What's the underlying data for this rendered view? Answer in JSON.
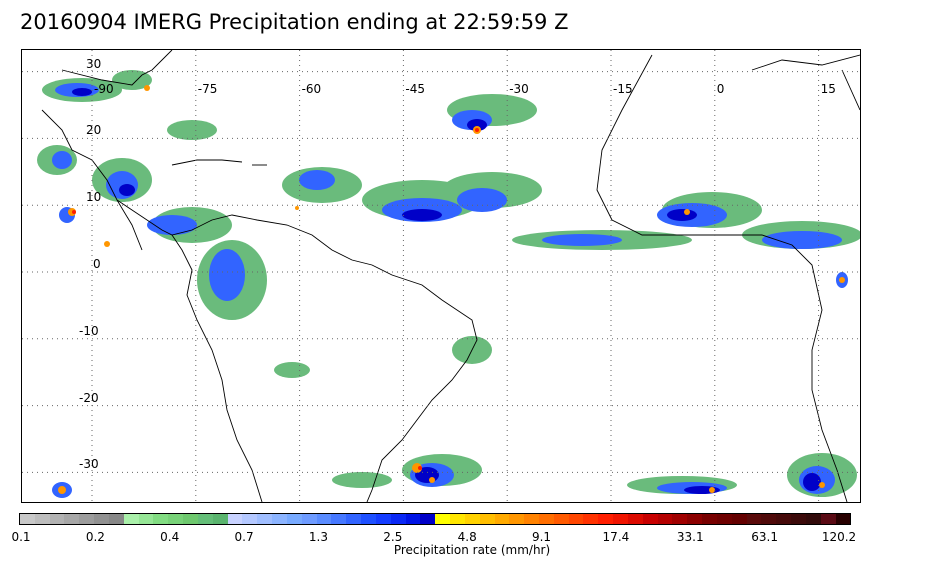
{
  "title": "20160904 IMERG Precipitation ending at 22:59:59 Z",
  "map": {
    "lon_labels": [
      {
        "text": "-90",
        "lon": -90
      },
      {
        "text": "-75",
        "lon": -75
      },
      {
        "text": "-60",
        "lon": -60
      },
      {
        "text": "-45",
        "lon": -45
      },
      {
        "text": "-30",
        "lon": -30
      },
      {
        "text": "-15",
        "lon": -15
      },
      {
        "text": "0",
        "lon": 0
      },
      {
        "text": "15",
        "lon": 15
      }
    ],
    "lat_labels": [
      {
        "text": "30",
        "lat": 30
      },
      {
        "text": "20",
        "lat": 20
      },
      {
        "text": "10",
        "lat": 10
      },
      {
        "text": "0",
        "lat": 0
      },
      {
        "text": "-10",
        "lat": -10
      },
      {
        "text": "-20",
        "lat": -20
      },
      {
        "text": "-30",
        "lat": -30
      }
    ],
    "grid_style": "dotted"
  },
  "colorbar": {
    "title": "Precipitation rate (mm/hr)",
    "tick_labels": [
      "0.1",
      "0.2",
      "0.4",
      "0.7",
      "1.3",
      "2.5",
      "4.8",
      "9.1",
      "17.4",
      "33.1",
      "63.1",
      "120.2"
    ],
    "colors": [
      "#c8c8c8",
      "#bdbdbd",
      "#b2b2b2",
      "#a7a7a7",
      "#9c9c9c",
      "#919191",
      "#878787",
      "#aaf0aa",
      "#96e696",
      "#82dc82",
      "#78d278",
      "#6ec86e",
      "#64be78",
      "#5ab46e",
      "#c8d2ff",
      "#b4c8ff",
      "#a0beff",
      "#8cb4ff",
      "#78aaff",
      "#6e9bff",
      "#5a8cff",
      "#4678ff",
      "#3264ff",
      "#1e50ff",
      "#143cff",
      "#0a28f5",
      "#0014e6",
      "#0000c8",
      "#ffff00",
      "#ffe600",
      "#ffd200",
      "#ffbe00",
      "#ffaa00",
      "#ff9600",
      "#ff8200",
      "#ff6e00",
      "#ff5a00",
      "#ff4600",
      "#ff3200",
      "#ff1e00",
      "#f01400",
      "#dc0a00",
      "#c80000",
      "#b40000",
      "#a00000",
      "#8c0000",
      "#780000",
      "#6e0000",
      "#640000",
      "#5a0a0a",
      "#500a0a",
      "#460a0a",
      "#3c0a0a",
      "#320a0a",
      "#5a0a14",
      "#280000"
    ]
  }
}
